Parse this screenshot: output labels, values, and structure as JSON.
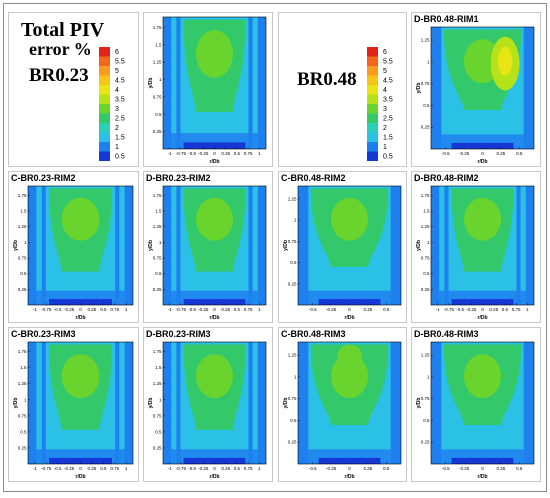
{
  "legend_title_line1": "Total PIV",
  "legend_title_line2": "error %",
  "group_labels": {
    "left": "BR0.23",
    "right": "BR0.48"
  },
  "colorbar": {
    "levels": [
      "6",
      "5.5",
      "5",
      "4.5",
      "4",
      "3.5",
      "3",
      "2.5",
      "2",
      "1.5",
      "1",
      "0.5"
    ],
    "colors": [
      "#e4231b",
      "#f3661c",
      "#fb9a1e",
      "#f7c418",
      "#e8e513",
      "#b5e218",
      "#69d42d",
      "#33c96a",
      "#2ad0b8",
      "#2bc0e6",
      "#1e80ee",
      "#1537d6"
    ]
  },
  "panels": {
    "p_r0c1": {
      "title": ""
    },
    "p_r0c3": {
      "title": "D-BR0.48-RIM1"
    },
    "p_r1c0": {
      "title": "C-BR0.23-RIM2"
    },
    "p_r1c1": {
      "title": "D-BR0.23-RIM2"
    },
    "p_r1c2": {
      "title": "C-BR0.48-RIM2"
    },
    "p_r1c3": {
      "title": "D-BR0.48-RIM2"
    },
    "p_r2c0": {
      "title": "C-BR0.23-RIM3"
    },
    "p_r2c1": {
      "title": "D-BR0.23-RIM3"
    },
    "p_r2c2": {
      "title": "C-BR0.48-RIM3"
    },
    "p_r2c3": {
      "title": "D-BR0.48-RIM3"
    }
  },
  "axes": {
    "ylabel": "y/Db",
    "xlabel": "r/Db",
    "br023": {
      "xticks": [
        "-1",
        "-0.75",
        "-0.5",
        "-0.25",
        "0",
        "0.25",
        "0.5",
        "0.75",
        "1"
      ],
      "yticks": [
        "0.25",
        "0.5",
        "0.75",
        "1",
        "1.25",
        "1.5",
        "1.75"
      ]
    },
    "br048": {
      "xticks": [
        "-0.5",
        "-0.25",
        "0",
        "0.25",
        "0.5"
      ],
      "yticks": [
        "0.25",
        "0.5",
        "0.75",
        "1",
        "1.25"
      ]
    }
  }
}
